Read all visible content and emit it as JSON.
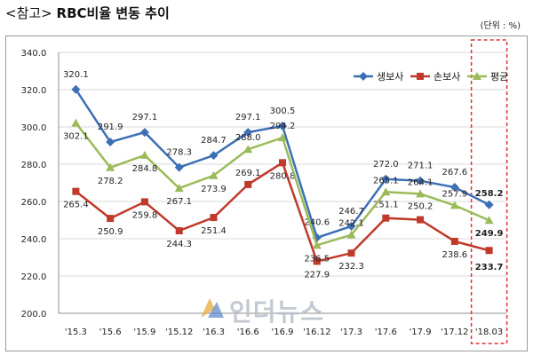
{
  "header": {
    "title_prefix": "<참고>",
    "title": "RBC비율 변동 추이",
    "unit": "(단위 : %)"
  },
  "watermark": {
    "text": "인더뉴스"
  },
  "chart_data": {
    "type": "line",
    "categories": [
      "'15.3",
      "'15.6",
      "'15.9",
      "'15.12",
      "'16.3",
      "'16.6",
      "'16.9",
      "'16.12",
      "'17.3",
      "'17.6",
      "'17.9",
      "'17.12",
      "'18.03"
    ],
    "ylim": [
      200,
      340
    ],
    "yticks": [
      "200.0",
      "220.0",
      "240.0",
      "260.0",
      "280.0",
      "300.0",
      "320.0",
      "340.0"
    ],
    "grid": true,
    "legend_position": "top-right",
    "highlight_category": "'18.03",
    "series": [
      {
        "name": "생보사",
        "color": "#3d6fb5",
        "marker": "diamond",
        "values": [
          320.1,
          291.9,
          297.1,
          278.3,
          284.7,
          297.1,
          300.5,
          240.6,
          246.7,
          272.0,
          271.1,
          267.6,
          258.2
        ]
      },
      {
        "name": "손보사",
        "color": "#c0392b",
        "marker": "square",
        "values": [
          265.4,
          250.9,
          259.8,
          244.3,
          251.4,
          269.1,
          280.8,
          227.9,
          232.3,
          251.1,
          250.2,
          238.6,
          233.7
        ]
      },
      {
        "name": "평균",
        "color": "#9bbb59",
        "marker": "triangle",
        "values": [
          302.1,
          278.2,
          284.8,
          267.1,
          273.9,
          288.0,
          294.2,
          236.5,
          242.1,
          265.1,
          264.1,
          257.9,
          249.9
        ]
      }
    ]
  }
}
